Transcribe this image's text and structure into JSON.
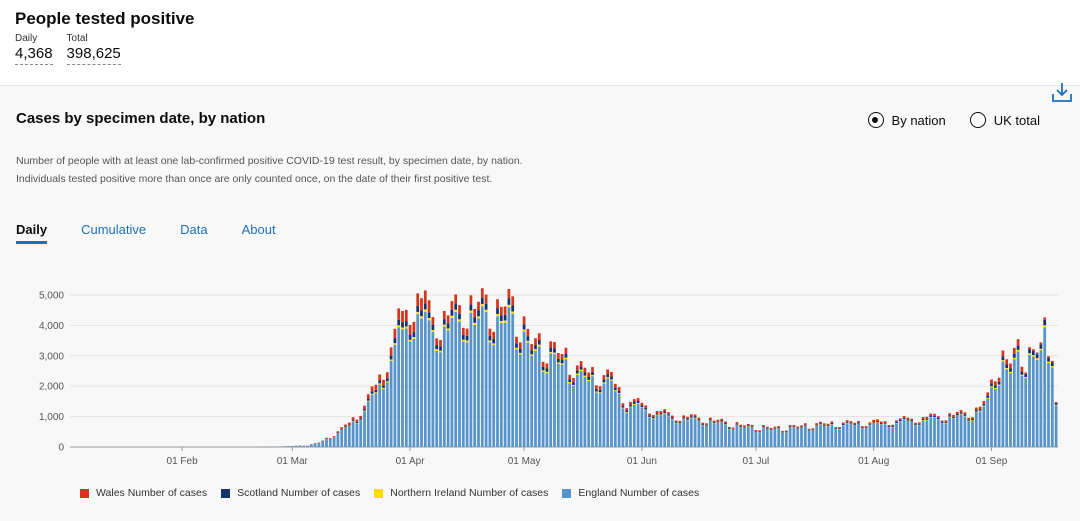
{
  "headline": {
    "title": "People tested positive",
    "daily_label": "Daily",
    "daily_value": "4,368",
    "total_label": "Total",
    "total_value": "398,625"
  },
  "card": {
    "title": "Cases by specimen date, by nation",
    "description": "Number of people with at least one lab-confirmed positive COVID-19 test result, by specimen date, by nation. Individuals tested positive more than once are only counted once, on the date of their first positive test.",
    "radio_by_nation": "By nation",
    "radio_uk_total": "UK total",
    "tabs": [
      "Daily",
      "Cumulative",
      "Data",
      "About"
    ],
    "active_tab": "Daily"
  },
  "icons": {
    "download": "download-icon"
  },
  "colors": {
    "wales": "#d4351c",
    "scotland": "#12336e",
    "northern_ireland": "#ffdd00",
    "england": "#5694ca",
    "link": "#1d70b8"
  },
  "chart_data": {
    "type": "bar",
    "stacked": true,
    "title": "Cases by specimen date, by nation",
    "xlabel": "",
    "ylabel": "",
    "ylim": [
      0,
      5500
    ],
    "yticks": [
      0,
      1000,
      2000,
      3000,
      4000,
      5000
    ],
    "ytick_labels": [
      "0",
      "1,000",
      "2,000",
      "3,000",
      "4,000",
      "5,000"
    ],
    "x_start": "2020-01-03",
    "x_tick_labels": [
      {
        "label": "01 Feb",
        "index": 29
      },
      {
        "label": "01 Mar",
        "index": 58
      },
      {
        "label": "01 Apr",
        "index": 89
      },
      {
        "label": "01 May",
        "index": 119
      },
      {
        "label": "01 Jun",
        "index": 150
      },
      {
        "label": "01 Jul",
        "index": 180
      },
      {
        "label": "01 Aug",
        "index": 211
      },
      {
        "label": "01 Sep",
        "index": 242
      }
    ],
    "legend": [
      "Wales Number of cases",
      "Scotland Number of cases",
      "Northern Ireland Number of cases",
      "England Number of cases"
    ],
    "legend_position": "bottom",
    "anchors": [
      [
        0,
        0
      ],
      [
        40,
        0
      ],
      [
        50,
        5
      ],
      [
        55,
        20
      ],
      [
        58,
        35
      ],
      [
        62,
        60
      ],
      [
        65,
        150
      ],
      [
        68,
        350
      ],
      [
        71,
        600
      ],
      [
        74,
        950
      ],
      [
        77,
        1400
      ],
      [
        80,
        2100
      ],
      [
        83,
        3000
      ],
      [
        86,
        4200
      ],
      [
        89,
        4900
      ],
      [
        91,
        5150
      ],
      [
        94,
        4600
      ],
      [
        97,
        4400
      ],
      [
        100,
        4700
      ],
      [
        103,
        4900
      ],
      [
        106,
        4800
      ],
      [
        109,
        5000
      ],
      [
        112,
        4600
      ],
      [
        115,
        5000
      ],
      [
        118,
        4300
      ],
      [
        121,
        3600
      ],
      [
        124,
        3500
      ],
      [
        127,
        3300
      ],
      [
        130,
        3100
      ],
      [
        133,
        2700
      ],
      [
        136,
        2600
      ],
      [
        139,
        2500
      ],
      [
        142,
        2400
      ],
      [
        146,
        1600
      ],
      [
        150,
        1500
      ],
      [
        154,
        1250
      ],
      [
        158,
        1100
      ],
      [
        162,
        1050
      ],
      [
        166,
        1000
      ],
      [
        170,
        900
      ],
      [
        174,
        800
      ],
      [
        178,
        720
      ],
      [
        182,
        680
      ],
      [
        186,
        650
      ],
      [
        190,
        700
      ],
      [
        194,
        750
      ],
      [
        198,
        800
      ],
      [
        202,
        820
      ],
      [
        206,
        850
      ],
      [
        210,
        860
      ],
      [
        214,
        880
      ],
      [
        218,
        950
      ],
      [
        222,
        1000
      ],
      [
        226,
        1050
      ],
      [
        230,
        1100
      ],
      [
        234,
        1150
      ],
      [
        238,
        1250
      ],
      [
        241,
        1700
      ],
      [
        243,
        2700
      ],
      [
        245,
        3000
      ],
      [
        247,
        2900
      ],
      [
        249,
        3400
      ],
      [
        251,
        3200
      ],
      [
        253,
        3300
      ],
      [
        255,
        3600
      ],
      [
        256,
        4200
      ],
      [
        257,
        3900
      ],
      [
        258,
        3700
      ],
      [
        259,
        1500
      ]
    ],
    "shares": {
      "wales": 0.06,
      "scotland": 0.04,
      "northern_ireland": 0.015,
      "england": 0.885
    }
  }
}
